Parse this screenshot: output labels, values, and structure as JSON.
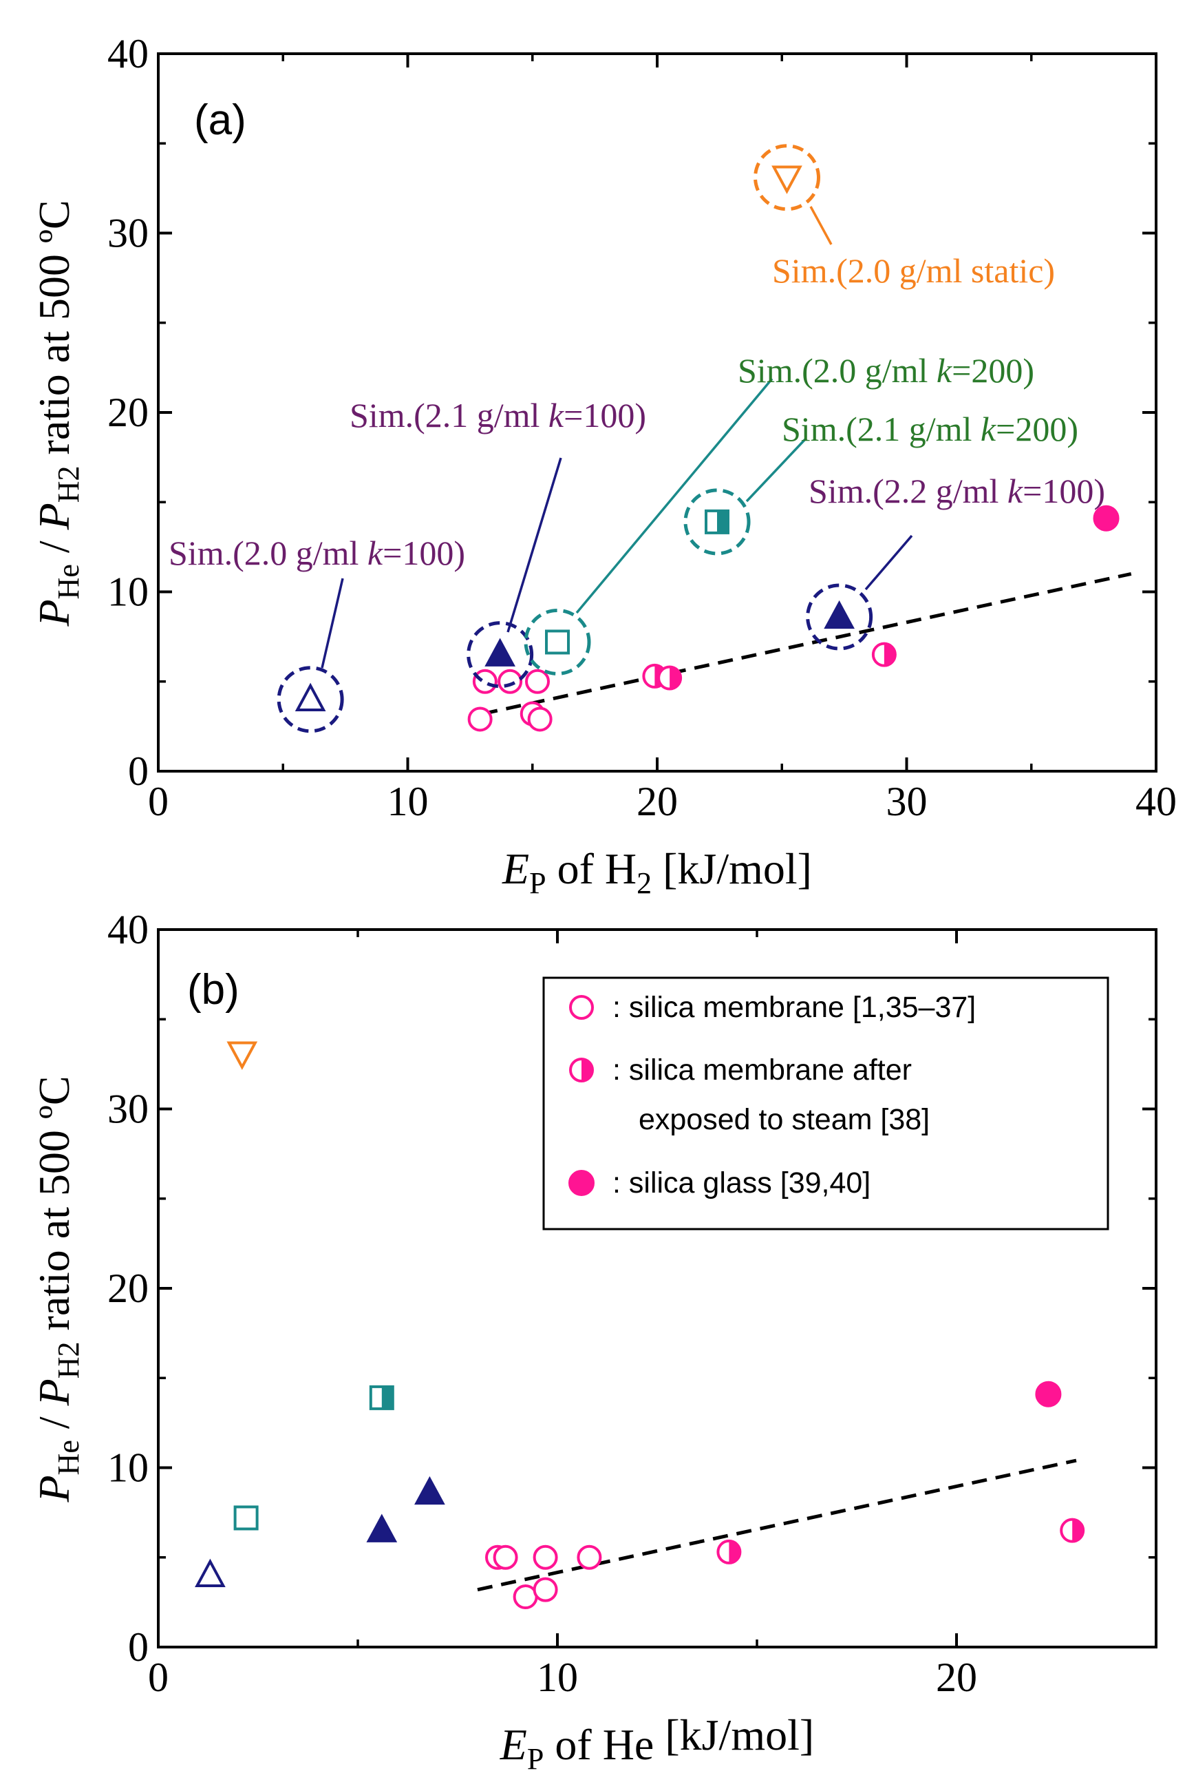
{
  "chart_data": [
    {
      "type": "scatter",
      "panel_label": "(a)",
      "xlabel": {
        "main": "E",
        "sub": "P",
        "rest": " of H",
        "sub2": "2",
        "tail": " [kJ/mol]"
      },
      "ylabel": {
        "p1": "P",
        "s1": "He",
        "mid": " / ",
        "p2": "P",
        "s2": "H2",
        "tail": " ratio at 500 ºC"
      },
      "xlim": [
        0,
        40
      ],
      "ylim": [
        0,
        40
      ],
      "xticks": [
        0,
        10,
        20,
        30,
        40
      ],
      "yticks": [
        0,
        10,
        20,
        30,
        40
      ],
      "trendline": {
        "x": [
          13,
          39
        ],
        "y": [
          3.2,
          11.0
        ]
      },
      "series": [
        {
          "name": "silica membrane",
          "marker": "circle-open",
          "color": "#ff1493",
          "points": [
            [
              12.9,
              2.9
            ],
            [
              13.1,
              5.0
            ],
            [
              14.1,
              5.0
            ],
            [
              15.0,
              3.2
            ],
            [
              15.2,
              5.0
            ],
            [
              15.3,
              2.9
            ]
          ]
        },
        {
          "name": "silica membrane after exposed to steam",
          "marker": "circle-half",
          "color": "#ff1493",
          "points": [
            [
              19.9,
              5.3
            ],
            [
              20.5,
              5.2
            ],
            [
              29.1,
              6.5
            ]
          ]
        },
        {
          "name": "silica glass",
          "marker": "circle-filled",
          "color": "#ff1493",
          "points": [
            [
              38.0,
              14.1
            ]
          ]
        },
        {
          "name": "Sim.(2.0 g/ml k=100)",
          "marker": "triangle-open",
          "color": "#1a1a80",
          "circled": true,
          "points": [
            [
              6.1,
              4.0
            ]
          ]
        },
        {
          "name": "Sim.(2.1 g/ml k=100)",
          "marker": "triangle-filled",
          "color": "#1a1a80",
          "circled": true,
          "points": [
            [
              13.7,
              6.5
            ]
          ]
        },
        {
          "name": "Sim.(2.2 g/ml k=100)",
          "marker": "triangle-filled",
          "color": "#1a1a80",
          "circled": true,
          "points": [
            [
              27.3,
              8.6
            ]
          ]
        },
        {
          "name": "Sim.(2.0 g/ml k=200)",
          "marker": "square-open",
          "color": "#1a8a8a",
          "circled": true,
          "points": [
            [
              16.0,
              7.2
            ]
          ]
        },
        {
          "name": "Sim.(2.1 g/ml k=200)",
          "marker": "square-half",
          "color": "#1a8a8a",
          "circled": true,
          "points": [
            [
              22.4,
              13.9
            ]
          ]
        },
        {
          "name": "Sim.(2.0 g/ml static)",
          "marker": "triangle-down-open",
          "color": "#f5821f",
          "circled": true,
          "points": [
            [
              25.2,
              33.1
            ]
          ]
        }
      ],
      "annotations": [
        {
          "pre": "Sim.(2.0 g/ml ",
          "k": "k",
          "post": "=100)",
          "color": "#6a1e6a"
        },
        {
          "pre": "Sim.(2.1 g/ml ",
          "k": "k",
          "post": "=100)",
          "color": "#6a1e6a"
        },
        {
          "pre": "Sim.(2.0 g/ml ",
          "k": "k",
          "post": "=200)",
          "color": "#2a7a2a"
        },
        {
          "pre": "Sim.(2.1 g/ml ",
          "k": "k",
          "post": "=200)",
          "color": "#2a7a2a"
        },
        {
          "pre": "Sim.(2.2 g/ml ",
          "k": "k",
          "post": "=100)",
          "color": "#6a1e6a"
        },
        {
          "pre": "Sim.(2.0 g/ml static)",
          "k": "",
          "post": "",
          "color": "#f5821f"
        }
      ]
    },
    {
      "type": "scatter",
      "panel_label": "(b)",
      "xlabel": {
        "main": "E",
        "sub": "P",
        "rest": " of He",
        "sub2": "",
        "tail": " [kJ/mol]"
      },
      "ylabel": {
        "p1": "P",
        "s1": "He",
        "mid": " / ",
        "p2": "P",
        "s2": "H2",
        "tail": " ratio at 500 ºC"
      },
      "xlim": [
        0,
        25
      ],
      "ylim": [
        0,
        40
      ],
      "xticks": [
        0,
        10,
        20
      ],
      "yticks": [
        0,
        10,
        20,
        30,
        40
      ],
      "trendline": {
        "x": [
          8,
          23
        ],
        "y": [
          3.2,
          10.4
        ]
      },
      "series": [
        {
          "name": "silica membrane",
          "marker": "circle-open",
          "color": "#ff1493",
          "points": [
            [
              8.5,
              5.0
            ],
            [
              8.7,
              5.0
            ],
            [
              9.2,
              2.8
            ],
            [
              9.7,
              3.2
            ],
            [
              9.7,
              5.0
            ],
            [
              10.8,
              5.0
            ]
          ]
        },
        {
          "name": "silica membrane after exposed to steam",
          "marker": "circle-half",
          "color": "#ff1493",
          "points": [
            [
              14.3,
              5.3
            ],
            [
              22.9,
              6.5
            ]
          ]
        },
        {
          "name": "silica glass",
          "marker": "circle-filled",
          "color": "#ff1493",
          "points": [
            [
              22.3,
              14.1
            ]
          ]
        },
        {
          "name": "Sim.(2.0 g/ml k=100)",
          "marker": "triangle-open",
          "color": "#1a1a80",
          "points": [
            [
              1.3,
              4.0
            ]
          ]
        },
        {
          "name": "Sim.(2.1 g/ml k=100)",
          "marker": "triangle-filled",
          "color": "#1a1a80",
          "points": [
            [
              5.6,
              6.5
            ]
          ]
        },
        {
          "name": "Sim.(2.2 g/ml k=100)",
          "marker": "triangle-filled",
          "color": "#1a1a80",
          "points": [
            [
              6.8,
              8.6
            ]
          ]
        },
        {
          "name": "Sim.(2.0 g/ml k=200)",
          "marker": "square-open",
          "color": "#1a8a8a",
          "points": [
            [
              2.2,
              7.2
            ]
          ]
        },
        {
          "name": "Sim.(2.1 g/ml k=200)",
          "marker": "square-half",
          "color": "#1a8a8a",
          "points": [
            [
              5.6,
              13.9
            ]
          ]
        },
        {
          "name": "Sim.(2.0 g/ml static)",
          "marker": "triangle-down-open",
          "color": "#f5821f",
          "points": [
            [
              2.1,
              33.1
            ]
          ]
        }
      ],
      "legend": [
        {
          "marker": "circle-open",
          "lines": [
            ": silica membrane [1,35–37]"
          ]
        },
        {
          "marker": "circle-half",
          "lines": [
            ": silica membrane after",
            "exposed to steam [38]"
          ]
        },
        {
          "marker": "circle-filled",
          "lines": [
            ": silica glass [39,40]"
          ]
        }
      ]
    }
  ]
}
